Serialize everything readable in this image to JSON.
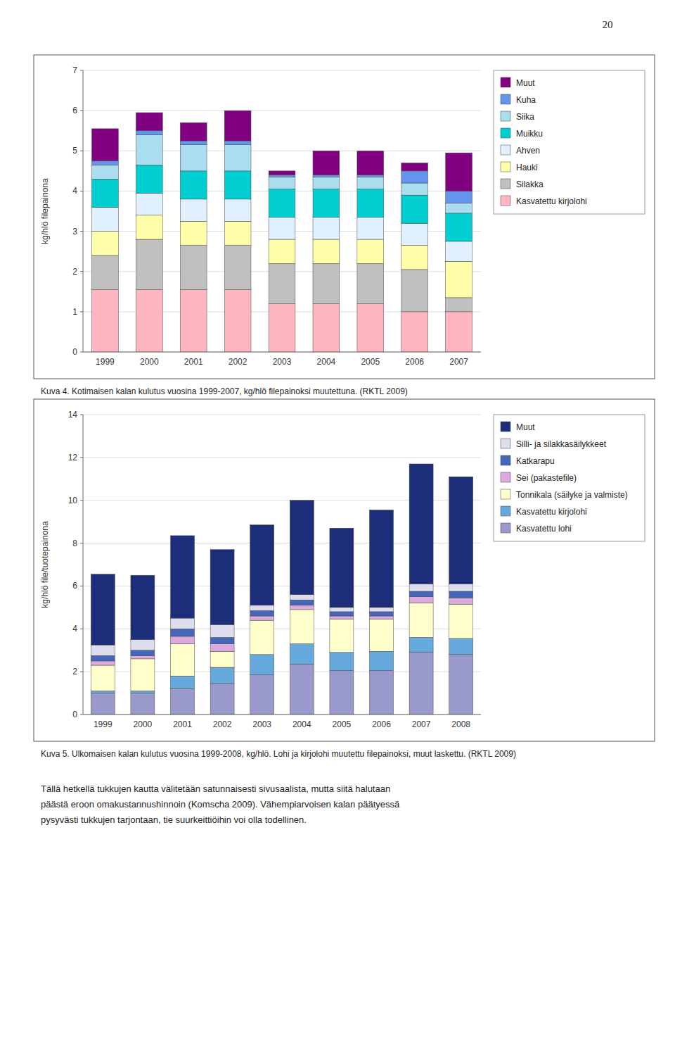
{
  "page_number": "20",
  "body_text": "Tällä hetkellä tukkujen kautta välitetään satunnaisesti sivusaalista, mutta siitä halutaan\npäästä eroon omakustannushinnoin (Komscha 2009). Vähempiarvoisen kalan päätyessä\npysyvästi tukkujen tarjontaan, tie suurkeittiöihin voi olla todellinen.",
  "chart_data": [
    {
      "type": "bar",
      "stacked": true,
      "grid": true,
      "legend": "right",
      "caption": "Kuva 4. Kotimaisen kalan kulutus vuosina 1999-2007, kg/hlö filepainoksi muutettuna. (RKTL 2009)",
      "ylabel": "kg/hlö filepainona",
      "categories": [
        "1999",
        "2000",
        "2001",
        "2002",
        "2003",
        "2004",
        "2005",
        "2006",
        "2007"
      ],
      "ylim": [
        0,
        7
      ],
      "yticks": [
        0,
        1,
        2,
        3,
        4,
        5,
        6,
        7
      ],
      "series": [
        {
          "name": "Kasvatettu kirjolohi",
          "color": "#FFB6C1",
          "values": [
            1.55,
            1.55,
            1.55,
            1.55,
            1.2,
            1.2,
            1.2,
            1.0,
            1.0
          ]
        },
        {
          "name": "Silakka",
          "color": "#C0C0C0",
          "values": [
            0.85,
            1.25,
            1.1,
            1.1,
            1.0,
            1.0,
            1.0,
            1.05,
            0.35
          ]
        },
        {
          "name": "Hauki",
          "color": "#FFFFAA",
          "values": [
            0.6,
            0.6,
            0.6,
            0.6,
            0.6,
            0.6,
            0.6,
            0.6,
            0.9
          ]
        },
        {
          "name": "Ahven",
          "color": "#E0F0FF",
          "values": [
            0.6,
            0.55,
            0.55,
            0.55,
            0.55,
            0.55,
            0.55,
            0.55,
            0.5
          ]
        },
        {
          "name": "Muikku",
          "color": "#00CED1",
          "values": [
            0.7,
            0.7,
            0.7,
            0.7,
            0.7,
            0.7,
            0.7,
            0.7,
            0.7
          ]
        },
        {
          "name": "Siika",
          "color": "#AADDEE",
          "values": [
            0.35,
            0.75,
            0.65,
            0.65,
            0.3,
            0.3,
            0.3,
            0.3,
            0.25
          ]
        },
        {
          "name": "Kuha",
          "color": "#6495ED",
          "values": [
            0.1,
            0.1,
            0.1,
            0.1,
            0.05,
            0.05,
            0.05,
            0.3,
            0.3
          ]
        },
        {
          "name": "Muut",
          "color": "#800080",
          "values": [
            0.8,
            0.45,
            0.45,
            0.75,
            0.1,
            0.6,
            0.6,
            0.2,
            0.95
          ]
        }
      ]
    },
    {
      "type": "bar",
      "stacked": true,
      "grid": true,
      "legend": "right",
      "caption": "Kuva 5. Ulkomaisen kalan kulutus vuosina 1999-2008, kg/hlö. Lohi ja kirjolohi muutettu filepainoksi, muut laskettu. (RKTL 2009)",
      "ylabel": "kg/hlö file/tuotepainona",
      "categories": [
        "1999",
        "2000",
        "2001",
        "2002",
        "2003",
        "2004",
        "2005",
        "2006",
        "2007",
        "2008"
      ],
      "ylim": [
        0,
        14
      ],
      "yticks": [
        0,
        2,
        4,
        6,
        8,
        10,
        12,
        14
      ],
      "series": [
        {
          "name": "Kasvatettu lohi",
          "color": "#9999CC",
          "values": [
            1.0,
            1.0,
            1.2,
            1.45,
            1.85,
            2.35,
            2.05,
            2.05,
            2.9,
            2.8
          ]
        },
        {
          "name": "Kasvatettu kirjolohi",
          "color": "#66AADD",
          "values": [
            0.1,
            0.1,
            0.6,
            0.75,
            0.95,
            0.95,
            0.85,
            0.9,
            0.7,
            0.75
          ]
        },
        {
          "name": "Tonnikala (säilyke ja valmiste)",
          "color": "#FFFFCC",
          "values": [
            1.2,
            1.5,
            1.5,
            0.75,
            1.6,
            1.6,
            1.55,
            1.5,
            1.6,
            1.6
          ]
        },
        {
          "name": "Sei (pakastefile)",
          "color": "#DDAADD",
          "values": [
            0.2,
            0.15,
            0.35,
            0.35,
            0.2,
            0.2,
            0.15,
            0.15,
            0.3,
            0.3
          ]
        },
        {
          "name": "Katkarapu",
          "color": "#4466BB",
          "values": [
            0.25,
            0.25,
            0.35,
            0.3,
            0.25,
            0.25,
            0.2,
            0.2,
            0.25,
            0.3
          ]
        },
        {
          "name": "Silli- ja silakkasäilykkeet",
          "color": "#DDDDEE",
          "values": [
            0.5,
            0.5,
            0.5,
            0.6,
            0.25,
            0.25,
            0.2,
            0.2,
            0.35,
            0.35
          ]
        },
        {
          "name": "Muut",
          "color": "#1C2D7A",
          "values": [
            3.3,
            3.0,
            3.85,
            3.5,
            3.75,
            4.4,
            3.7,
            4.55,
            5.6,
            5.0
          ]
        }
      ]
    }
  ]
}
